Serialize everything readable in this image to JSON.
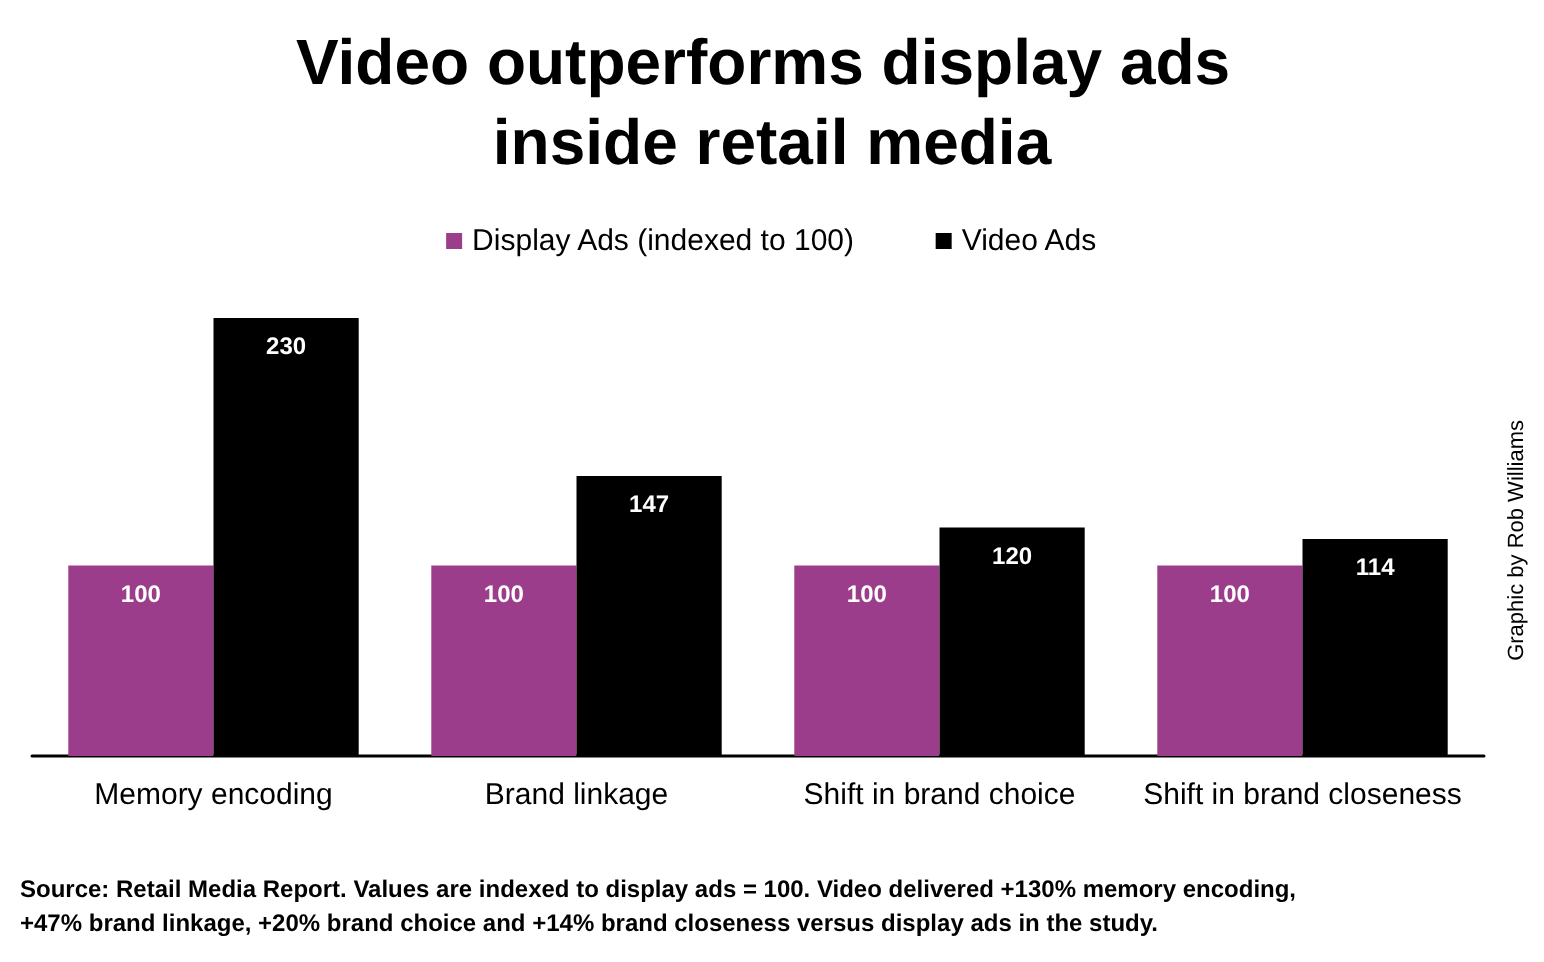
{
  "chart_data": {
    "type": "bar",
    "title": "Video outperforms display ads inside retail media",
    "categories": [
      "Memory encoding",
      "Brand linkage",
      "Shift in brand choice",
      "Shift in brand closeness"
    ],
    "series": [
      {
        "name": "Display Ads (indexed to 100)",
        "color": "#9b3d8a",
        "values": [
          100,
          100,
          100,
          100
        ]
      },
      {
        "name": "Video Ads",
        "color": "#000000",
        "values": [
          230,
          147,
          120,
          114
        ]
      }
    ],
    "data_labels": true,
    "legend": "top",
    "grid": false,
    "tick_labels": "x",
    "annotations": [
      "Source: Retail Media Report. Values are indexed to display ads = 100. Video delivered +130% memory encoding, +47% brand linkage, +20% brand choice and +14% brand closeness versus display ads in the study.",
      "Graphic by Rob Williams"
    ]
  }
}
